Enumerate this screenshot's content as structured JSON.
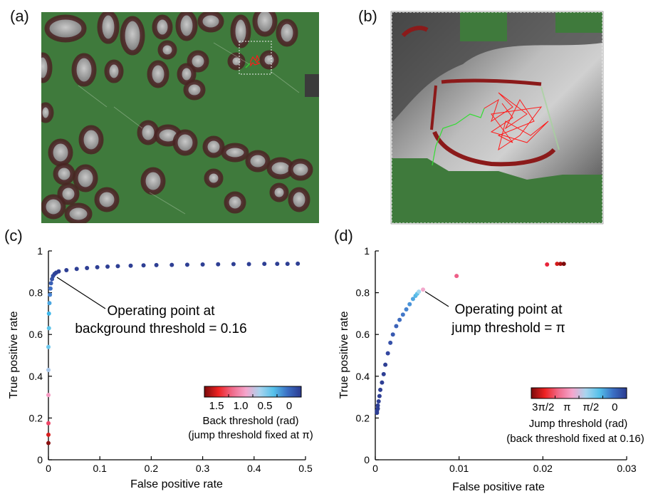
{
  "panels": {
    "a": "(a)",
    "b": "(b)",
    "c": "(c)",
    "d": "(d)"
  },
  "colors": {
    "background_green": "#3f7a3c",
    "cell_gray": "#8a8a8a",
    "cell_border": "#5a2424",
    "track_red": "#ff1a1a",
    "track_green": "#33dd33",
    "dark_blue": "#2e3f94",
    "axis": "#000000"
  },
  "chart_data": [
    {
      "type": "scatter",
      "panel": "c",
      "xlabel": "False positive rate",
      "ylabel": "True positive rate",
      "xlim": [
        0,
        0.5
      ],
      "ylim": [
        0,
        1
      ],
      "xticks": [
        "0",
        "0.1",
        "0.2",
        "0.3",
        "0.4",
        "0.5"
      ],
      "yticks": [
        "0",
        "0.2",
        "0.4",
        "0.6",
        "0.8",
        "1"
      ],
      "points": [
        {
          "x": 0.0,
          "y": 0.08,
          "color": "#8b1010"
        },
        {
          "x": 0.0,
          "y": 0.12,
          "color": "#d81e1e"
        },
        {
          "x": 0.0,
          "y": 0.175,
          "color": "#ee4466"
        },
        {
          "x": 0.0,
          "y": 0.31,
          "color": "#f59ac2"
        },
        {
          "x": 0.0,
          "y": 0.43,
          "color": "#a8c6e8"
        },
        {
          "x": 0.0,
          "y": 0.54,
          "color": "#6dc8ee"
        },
        {
          "x": 0.001,
          "y": 0.63,
          "color": "#5bc4ea"
        },
        {
          "x": 0.001,
          "y": 0.7,
          "color": "#3fb7ea"
        },
        {
          "x": 0.002,
          "y": 0.75,
          "color": "#4aa6e0"
        },
        {
          "x": 0.003,
          "y": 0.79,
          "color": "#4b86d2"
        },
        {
          "x": 0.004,
          "y": 0.82,
          "color": "#3f6fc4"
        },
        {
          "x": 0.005,
          "y": 0.845,
          "color": "#3a5fb4"
        },
        {
          "x": 0.007,
          "y": 0.865,
          "color": "#3552a8"
        },
        {
          "x": 0.009,
          "y": 0.88,
          "color": "#3049a0"
        },
        {
          "x": 0.012,
          "y": 0.89,
          "color": "#2e4499"
        },
        {
          "x": 0.015,
          "y": 0.896,
          "color": "#2e4198"
        },
        {
          "x": 0.02,
          "y": 0.902,
          "color": "#2e3f94"
        },
        {
          "x": 0.035,
          "y": 0.908,
          "color": "#2e3f94"
        },
        {
          "x": 0.055,
          "y": 0.914,
          "color": "#2e3f94"
        },
        {
          "x": 0.075,
          "y": 0.918,
          "color": "#2e3f94"
        },
        {
          "x": 0.095,
          "y": 0.922,
          "color": "#2e3f94"
        },
        {
          "x": 0.115,
          "y": 0.925,
          "color": "#2e3f94"
        },
        {
          "x": 0.135,
          "y": 0.927,
          "color": "#2e3f94"
        },
        {
          "x": 0.16,
          "y": 0.929,
          "color": "#2e3f94"
        },
        {
          "x": 0.185,
          "y": 0.931,
          "color": "#2e3f94"
        },
        {
          "x": 0.21,
          "y": 0.932,
          "color": "#2e3f94"
        },
        {
          "x": 0.24,
          "y": 0.933,
          "color": "#2e3f94"
        },
        {
          "x": 0.27,
          "y": 0.934,
          "color": "#2e3f94"
        },
        {
          "x": 0.3,
          "y": 0.935,
          "color": "#2e3f94"
        },
        {
          "x": 0.33,
          "y": 0.936,
          "color": "#2e3f94"
        },
        {
          "x": 0.36,
          "y": 0.937,
          "color": "#2e3f94"
        },
        {
          "x": 0.39,
          "y": 0.937,
          "color": "#2e3f94"
        },
        {
          "x": 0.42,
          "y": 0.938,
          "color": "#2e3f94"
        },
        {
          "x": 0.445,
          "y": 0.938,
          "color": "#2e3f94"
        },
        {
          "x": 0.465,
          "y": 0.938,
          "color": "#2e3f94"
        },
        {
          "x": 0.485,
          "y": 0.939,
          "color": "#2e3f94"
        }
      ],
      "annotation": {
        "line1": "Operating point at",
        "line2": "background threshold = 0.16",
        "point": {
          "x": 0.012,
          "y": 0.89
        }
      },
      "colorbar": {
        "tick_labels": [
          "1.5",
          "1.0",
          "0.5",
          "0"
        ],
        "label_line1": "Back threshold (rad)",
        "label_line2": "(jump threshold fixed at π)",
        "stops": [
          "#7a0a0a",
          "#ee2222",
          "#f06a8a",
          "#f5a5cc",
          "#a9d4ee",
          "#55c1ea",
          "#3b6fc4",
          "#2b3a8f"
        ]
      }
    },
    {
      "type": "scatter",
      "panel": "d",
      "xlabel": "False positive rate",
      "ylabel": "True positive rate",
      "xlim": [
        0,
        0.03
      ],
      "ylim": [
        0,
        1
      ],
      "xticks": [
        "0",
        "0.01",
        "0.02",
        "0.03"
      ],
      "yticks": [
        "0",
        "0.2",
        "0.4",
        "0.6",
        "0.8",
        "1"
      ],
      "points": [
        {
          "x": 0.0002,
          "y": 0.225,
          "color": "#2e3f94"
        },
        {
          "x": 0.0002,
          "y": 0.235,
          "color": "#2e3f94"
        },
        {
          "x": 0.0003,
          "y": 0.245,
          "color": "#2e3f94"
        },
        {
          "x": 0.0003,
          "y": 0.26,
          "color": "#2e3f94"
        },
        {
          "x": 0.0004,
          "y": 0.28,
          "color": "#2e3f94"
        },
        {
          "x": 0.0005,
          "y": 0.305,
          "color": "#2e3f94"
        },
        {
          "x": 0.0006,
          "y": 0.335,
          "color": "#2e3f94"
        },
        {
          "x": 0.0008,
          "y": 0.37,
          "color": "#2e3f94"
        },
        {
          "x": 0.001,
          "y": 0.41,
          "color": "#2e3f94"
        },
        {
          "x": 0.0012,
          "y": 0.455,
          "color": "#2e3f94"
        },
        {
          "x": 0.0015,
          "y": 0.51,
          "color": "#3346a0"
        },
        {
          "x": 0.0018,
          "y": 0.56,
          "color": "#3550a8"
        },
        {
          "x": 0.0021,
          "y": 0.6,
          "color": "#3859b0"
        },
        {
          "x": 0.0025,
          "y": 0.64,
          "color": "#3b62b8"
        },
        {
          "x": 0.0029,
          "y": 0.67,
          "color": "#3e6cc0"
        },
        {
          "x": 0.0033,
          "y": 0.695,
          "color": "#4277c8"
        },
        {
          "x": 0.0037,
          "y": 0.72,
          "color": "#4684d0"
        },
        {
          "x": 0.0041,
          "y": 0.745,
          "color": "#4a93d8"
        },
        {
          "x": 0.0045,
          "y": 0.77,
          "color": "#4fa5e0"
        },
        {
          "x": 0.0048,
          "y": 0.785,
          "color": "#55b5e6"
        },
        {
          "x": 0.005,
          "y": 0.795,
          "color": "#60c2ea"
        },
        {
          "x": 0.0052,
          "y": 0.805,
          "color": "#a3d6ee"
        },
        {
          "x": 0.0057,
          "y": 0.815,
          "color": "#f2a8cc"
        },
        {
          "x": 0.0097,
          "y": 0.88,
          "color": "#ee5f88"
        },
        {
          "x": 0.0205,
          "y": 0.935,
          "color": "#e8243a"
        },
        {
          "x": 0.0217,
          "y": 0.938,
          "color": "#d31b1b"
        },
        {
          "x": 0.0221,
          "y": 0.938,
          "color": "#a91212"
        },
        {
          "x": 0.0225,
          "y": 0.938,
          "color": "#7c0c0c"
        }
      ],
      "annotation": {
        "line1": "Operating point at",
        "line2": "jump threshold = π",
        "point": {
          "x": 0.0057,
          "y": 0.815
        }
      },
      "colorbar": {
        "tick_labels": [
          "3π/2",
          "π",
          "π/2",
          "0"
        ],
        "label_line1": "Jump threshold (rad)",
        "label_line2": "(back threshold fixed at 0.16)",
        "stops": [
          "#7a0a0a",
          "#ee2222",
          "#f06a8a",
          "#f5a5cc",
          "#a9d4ee",
          "#55c1ea",
          "#3b6fc4",
          "#2b3a8f"
        ]
      }
    }
  ]
}
